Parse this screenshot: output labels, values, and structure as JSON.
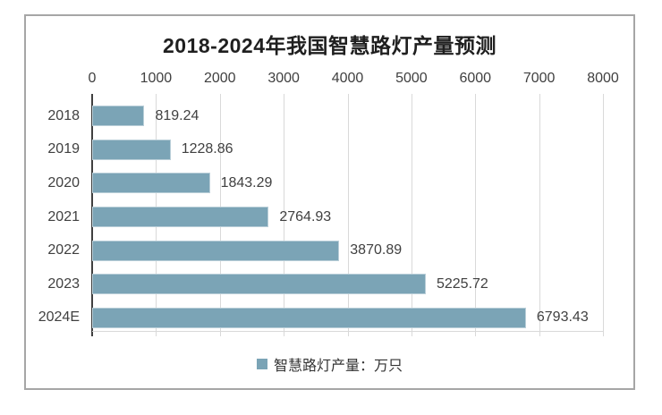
{
  "chart_data": {
    "type": "bar",
    "orientation": "horizontal",
    "title": "2018-2024年我国智慧路灯产量预测",
    "categories": [
      "2018",
      "2019",
      "2020",
      "2021",
      "2022",
      "2023",
      "2024E"
    ],
    "values": [
      819.24,
      1228.86,
      1843.29,
      2764.93,
      3870.89,
      5225.72,
      6793.43
    ],
    "series_name": "智慧路灯产量：万只",
    "xlabel": "",
    "ylabel": "",
    "xlim": [
      0,
      8000
    ],
    "xticks": [
      0,
      1000,
      2000,
      3000,
      4000,
      5000,
      6000,
      7000,
      8000
    ],
    "tick_step": 1000,
    "grid": true,
    "axis_position": "top",
    "value_labels": true,
    "legend_position": "bottom",
    "colors": {
      "bar": "#7ba4b6",
      "bar_edge": "#b9ced8",
      "grid": "#d9d9d9",
      "axis": "#404040",
      "label": "#404040",
      "title": "#1f1f1f",
      "frame_border": "#a6a6a6",
      "background": "#ffffff"
    }
  }
}
